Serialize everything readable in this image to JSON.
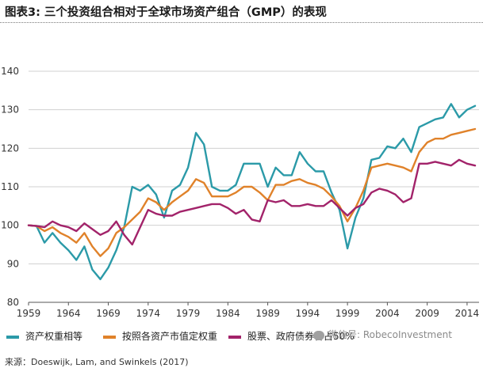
{
  "title": "图表3: 三个投资组合相对于全球市场资产组合（GMP）的表现",
  "source": "来源：Doeswijk, Lam, and Swinkels (2017)",
  "watermark": "微信号: RobecoInvestment",
  "colors": {
    "teal": "#2b9aa8",
    "orange": "#e0822a",
    "magenta": "#a2236a",
    "grid": "#d0d0d0",
    "axis": "#555555"
  },
  "chart_data": {
    "type": "line",
    "title": "",
    "xlabel": "",
    "ylabel": "",
    "xlim": [
      1959,
      2015.5
    ],
    "ylim": [
      80,
      140
    ],
    "yticks": [
      80,
      90,
      100,
      110,
      120,
      130,
      140
    ],
    "xticks": [
      1959,
      1964,
      1969,
      1974,
      1979,
      1984,
      1989,
      1994,
      1999,
      2004,
      2009,
      2014
    ],
    "grid": "horizontal",
    "legend_position": "bottom",
    "x": [
      1959,
      1960,
      1961,
      1962,
      1963,
      1964,
      1965,
      1966,
      1967,
      1968,
      1969,
      1970,
      1971,
      1972,
      1973,
      1974,
      1975,
      1976,
      1977,
      1978,
      1979,
      1980,
      1981,
      1982,
      1983,
      1984,
      1985,
      1986,
      1987,
      1988,
      1989,
      1990,
      1991,
      1992,
      1993,
      1994,
      1995,
      1996,
      1997,
      1998,
      1999,
      2000,
      2001,
      2002,
      2003,
      2004,
      2005,
      2006,
      2007,
      2008,
      2009,
      2010,
      2011,
      2012,
      2013,
      2014,
      2015
    ],
    "series": [
      {
        "name": "资产权重相等",
        "color_key": "teal",
        "values": [
          100,
          99.8,
          95.5,
          98,
          95.5,
          93.5,
          91,
          94.5,
          88.5,
          86,
          89,
          93.5,
          99.5,
          110,
          109,
          110.5,
          108,
          102,
          109,
          110.5,
          115,
          124,
          121,
          110,
          109,
          109,
          110.5,
          116,
          116,
          116,
          110,
          115,
          113,
          113,
          119,
          116,
          114,
          114,
          108.5,
          104,
          94,
          102,
          107,
          117,
          117.5,
          120.5,
          120,
          122.5,
          119,
          125.5,
          126.5,
          127.5,
          128,
          131.5,
          128,
          130,
          131
        ]
      },
      {
        "name": "按照各资产市值定权重",
        "color_key": "orange",
        "values": [
          100,
          99.8,
          98.5,
          99.5,
          98,
          97,
          95.5,
          98,
          94.5,
          92,
          94,
          98,
          99.5,
          101.5,
          103.5,
          107,
          106,
          104,
          106,
          107.5,
          109,
          112,
          111,
          107.5,
          107.5,
          107.5,
          108.5,
          110,
          110,
          108.5,
          106.5,
          110.5,
          110.5,
          111.5,
          112,
          111,
          110.5,
          109.5,
          107.5,
          105,
          101,
          104.5,
          109,
          115,
          115.5,
          116,
          115.5,
          115,
          114,
          119,
          121.5,
          122.5,
          122.5,
          123.5,
          124,
          124.5,
          125
        ]
      },
      {
        "name": "股票、政府债券各占50%",
        "color_key": "magenta",
        "values": [
          100,
          99.8,
          99.5,
          101,
          100,
          99.5,
          98.5,
          100.5,
          99,
          97.5,
          98.5,
          101,
          97.5,
          95,
          99.5,
          104,
          103,
          102.5,
          102.5,
          103.5,
          104,
          104.5,
          105,
          105.5,
          105.5,
          104.5,
          103,
          104,
          101.5,
          101,
          106.5,
          106,
          106.5,
          105,
          105,
          105.5,
          105,
          105,
          106.5,
          104.5,
          102.5,
          104.5,
          105.5,
          108.5,
          109.5,
          109,
          108,
          106,
          107,
          116,
          116,
          116.5,
          116,
          115.5,
          117,
          116,
          115.5
        ]
      }
    ]
  }
}
